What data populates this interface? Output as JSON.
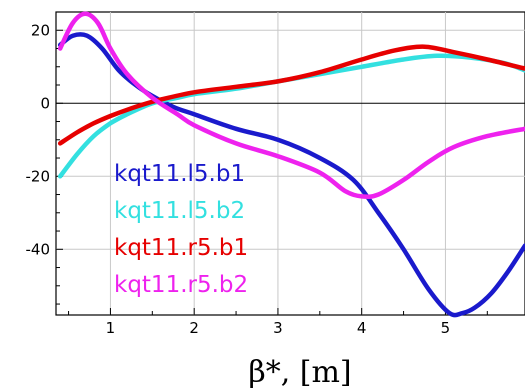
{
  "chart_data": {
    "type": "line",
    "title": "",
    "xlabel": "β*, [m]",
    "ylabel": "",
    "xlim": [
      0.35,
      5.95
    ],
    "ylim": [
      -58,
      25
    ],
    "x_ticks": [
      1,
      2,
      3,
      4,
      5
    ],
    "y_ticks": [
      20,
      0,
      -20,
      -40
    ],
    "grid": true,
    "legend_position": "left",
    "series": [
      {
        "name": "kqt11.l5.b1",
        "color": "#1a1acc",
        "x": [
          0.4,
          0.55,
          0.72,
          0.9,
          1.1,
          1.3,
          1.5,
          1.75,
          2.0,
          2.5,
          3.0,
          3.5,
          3.9,
          4.2,
          4.5,
          4.8,
          5.05,
          5.2,
          5.35,
          5.55,
          5.75,
          5.95
        ],
        "y": [
          16,
          18.5,
          18.5,
          15,
          9,
          5,
          2,
          -1,
          -3,
          -7,
          -10,
          -15,
          -21,
          -30,
          -40,
          -51,
          -57.5,
          -57.5,
          -56,
          -52,
          -46,
          -39
        ]
      },
      {
        "name": "kqt11.l5.b2",
        "color": "#33e0e0",
        "x": [
          0.4,
          0.6,
          0.8,
          1.0,
          1.2,
          1.5,
          1.8,
          2.0,
          2.5,
          3.0,
          3.5,
          4.0,
          4.5,
          4.9,
          5.3,
          5.7,
          5.95
        ],
        "y": [
          -20,
          -14,
          -9,
          -5.5,
          -3,
          0,
          1.5,
          2.5,
          4,
          6,
          8,
          10,
          12,
          13,
          12.5,
          11,
          9
        ]
      },
      {
        "name": "kqt11.r5.b1",
        "color": "#e60000",
        "x": [
          0.4,
          0.6,
          0.8,
          1.0,
          1.3,
          1.6,
          2.0,
          2.5,
          3.0,
          3.5,
          4.0,
          4.4,
          4.75,
          5.1,
          5.5,
          5.95
        ],
        "y": [
          -11,
          -8,
          -5.5,
          -3.5,
          -1,
          1,
          3,
          4.5,
          6,
          8.5,
          12,
          14.5,
          15.5,
          14,
          12,
          9.5
        ]
      },
      {
        "name": "kqt11.r5.b2",
        "color": "#ee22ee",
        "x": [
          0.4,
          0.55,
          0.7,
          0.85,
          1.0,
          1.2,
          1.5,
          1.8,
          2.0,
          2.5,
          3.0,
          3.5,
          3.8,
          4.0,
          4.2,
          4.5,
          4.8,
          5.1,
          5.5,
          5.95
        ],
        "y": [
          15,
          22,
          24.5,
          22,
          15,
          8,
          1.5,
          -3,
          -6,
          -11,
          -14.5,
          -19,
          -24,
          -25.5,
          -25,
          -21,
          -16,
          -12,
          -9,
          -7
        ]
      }
    ]
  }
}
